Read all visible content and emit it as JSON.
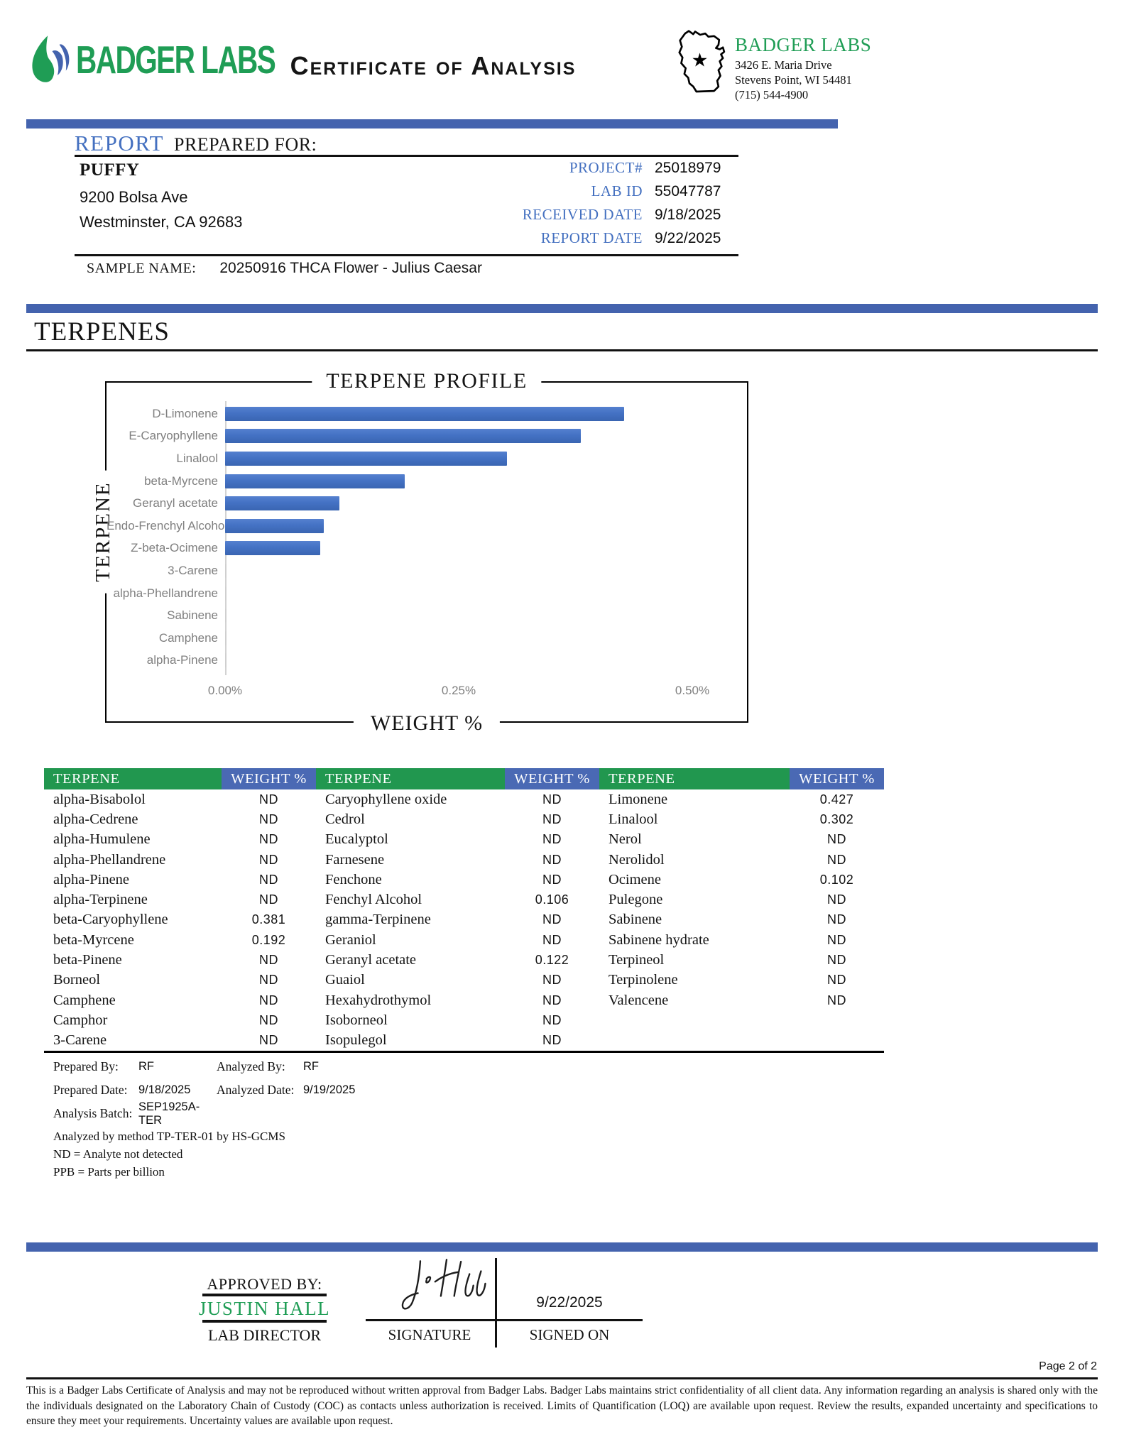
{
  "colors": {
    "accent_blue": "#4470C0",
    "divider_blue": "#4463AE",
    "bar_blue": "#4472C4",
    "brand_green": "#1F9D55",
    "table_header_green": "#21974F",
    "table_header_blue": "#4A69B4"
  },
  "header": {
    "logo_text": "BADGER LABS",
    "title": "Certificate of Analysis",
    "lab": {
      "name": "BADGER LABS",
      "address1": "3426 E. Maria Drive",
      "address2": "Stevens Point, WI 54481",
      "phone": "(715) 544-4900"
    }
  },
  "report": {
    "label_report": "REPORT",
    "label_prepared_for": "PREPARED FOR:",
    "client": {
      "name": "PUFFY",
      "address1": "9200 Bolsa Ave",
      "address2": "Westminster, CA 92683"
    },
    "fields": [
      {
        "label": "PROJECT#",
        "value": "25018979"
      },
      {
        "label": "LAB ID",
        "value": "55047787"
      },
      {
        "label": "RECEIVED DATE",
        "value": "9/18/2025"
      },
      {
        "label": "REPORT DATE",
        "value": "9/22/2025"
      }
    ],
    "sample_label": "SAMPLE NAME:",
    "sample_name": "20250916 THCA Flower - Julius Caesar"
  },
  "section": {
    "title": "TERPENES"
  },
  "chart_data": {
    "type": "bar",
    "orientation": "horizontal",
    "title": "TERPENE PROFILE",
    "xlabel": "WEIGHT %",
    "ylabel": "TERPENE",
    "categories": [
      "D-Limonene",
      "E-Caryophyllene",
      "Linalool",
      "beta-Myrcene",
      "Geranyl acetate",
      "Endo-Frenchyl Alcohol",
      "Z-beta-Ocimene",
      "3-Carene",
      "alpha-Phellandrene",
      "Sabinene",
      "Camphene",
      "alpha-Pinene"
    ],
    "values": [
      0.427,
      0.381,
      0.302,
      0.192,
      0.122,
      0.106,
      0.102,
      0,
      0,
      0,
      0,
      0
    ],
    "x_ticks": [
      {
        "label": "0.00%",
        "value": 0
      },
      {
        "label": "0.25%",
        "value": 0.25
      },
      {
        "label": "0.50%",
        "value": 0.5
      }
    ],
    "xlim": [
      0,
      0.5
    ],
    "grid": false,
    "legend": false,
    "bar_color": "#4472C4"
  },
  "table": {
    "terpene_header": "TERPENE",
    "weight_header": "WEIGHT %",
    "pairs": [
      {
        "rows": [
          [
            "alpha-Bisabolol",
            "ND"
          ],
          [
            "alpha-Cedrene",
            "ND"
          ],
          [
            "alpha-Humulene",
            "ND"
          ],
          [
            "alpha-Phellandrene",
            "ND"
          ],
          [
            "alpha-Pinene",
            "ND"
          ],
          [
            "alpha-Terpinene",
            "ND"
          ],
          [
            "beta-Caryophyllene",
            "0.381"
          ],
          [
            "beta-Myrcene",
            "0.192"
          ],
          [
            "beta-Pinene",
            "ND"
          ],
          [
            "Borneol",
            "ND"
          ],
          [
            "Camphene",
            "ND"
          ],
          [
            "Camphor",
            "ND"
          ],
          [
            "3-Carene",
            "ND"
          ]
        ]
      },
      {
        "rows": [
          [
            "Caryophyllene oxide",
            "ND"
          ],
          [
            "Cedrol",
            "ND"
          ],
          [
            "Eucalyptol",
            "ND"
          ],
          [
            "Farnesene",
            "ND"
          ],
          [
            "Fenchone",
            "ND"
          ],
          [
            "Fenchyl Alcohol",
            "0.106"
          ],
          [
            "gamma-Terpinene",
            "ND"
          ],
          [
            "Geraniol",
            "ND"
          ],
          [
            "Geranyl acetate",
            "0.122"
          ],
          [
            "Guaiol",
            "ND"
          ],
          [
            "Hexahydrothymol",
            "ND"
          ],
          [
            "Isoborneol",
            "ND"
          ],
          [
            "Isopulegol",
            "ND"
          ]
        ]
      },
      {
        "rows": [
          [
            "Limonene",
            "0.427"
          ],
          [
            "Linalool",
            "0.302"
          ],
          [
            "Nerol",
            "ND"
          ],
          [
            "Nerolidol",
            "ND"
          ],
          [
            "Ocimene",
            "0.102"
          ],
          [
            "Pulegone",
            "ND"
          ],
          [
            "Sabinene",
            "ND"
          ],
          [
            "Sabinene hydrate",
            "ND"
          ],
          [
            "Terpineol",
            "ND"
          ],
          [
            "Terpinolene",
            "ND"
          ],
          [
            "Valencene",
            "ND"
          ],
          [
            "",
            ""
          ],
          [
            "",
            ""
          ]
        ]
      }
    ]
  },
  "notes": {
    "rows": [
      [
        {
          "label": "Prepared By:",
          "value": "RF"
        },
        {
          "label": "Analyzed By:",
          "value": "RF"
        }
      ],
      [
        {
          "label": "Prepared Date:",
          "value": "9/18/2025"
        },
        {
          "label": "Analyzed Date:",
          "value": "9/19/2025"
        }
      ],
      [
        {
          "label": "Analysis Batch:",
          "value": "SEP1925A-TER"
        }
      ]
    ],
    "lines": [
      "Analyzed by method TP-TER-01 by HS-GCMS",
      "ND = Analyte not detected",
      "PPB = Parts per billion"
    ]
  },
  "approval": {
    "approved_by_label": "APPROVED BY:",
    "approver_name": "JUSTIN HALL",
    "approver_title": "LAB DIRECTOR",
    "signature_label": "SIGNATURE",
    "signed_on_label": "SIGNED ON",
    "signed_date": "9/22/2025"
  },
  "footer": {
    "page": "Page 2 of 2",
    "disclaimer": "This is a Badger Labs Certificate of Analysis and may not be reproduced without written approval from Badger Labs. Badger Labs maintains strict confidentiality of all client data. Any information regarding an analysis is shared only with the the individuals designated on the Laboratory Chain of Custody (COC) as contacts unless authorization is received. Limits of Quantification (LOQ) are available upon request. Review the results, expanded uncertainty and specifications to ensure they meet your requirements. Uncertainty values are available upon request."
  }
}
